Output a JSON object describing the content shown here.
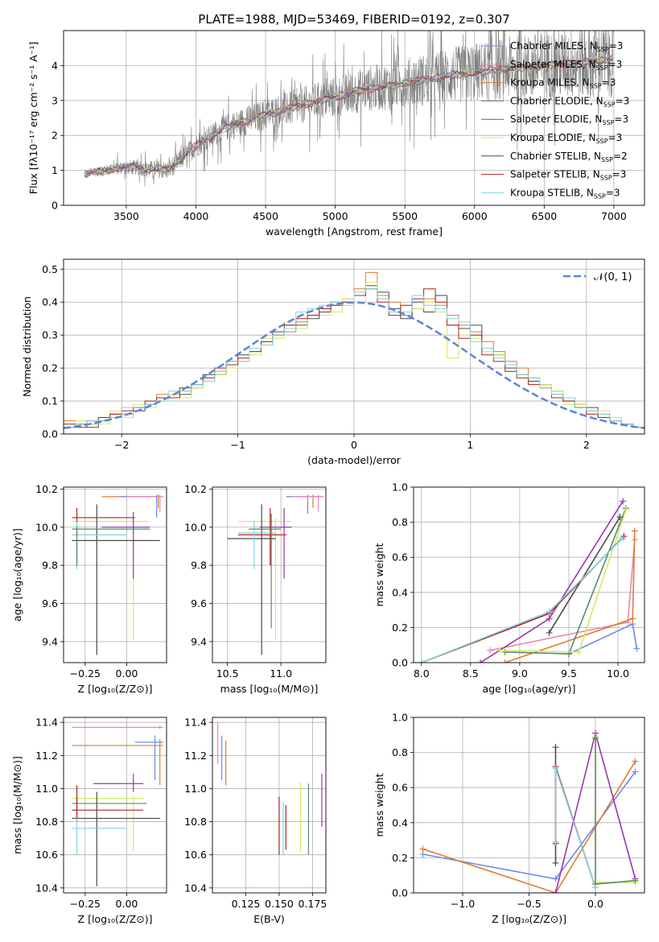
{
  "title": "PLATE=1988, MJD=53469, FIBERID=0192, z=0.307",
  "colors": {
    "Chabrier MILES": "#6a8ee0",
    "Salpeter MILES": "#e887b8",
    "Kroupa MILES": "#e07b30",
    "Chabrier ELODIE": "#5a8a6a",
    "Salpeter ELODIE": "#9a35b0",
    "Kroupa ELODIE": "#d4ea60",
    "Chabrier STELIB": "#4a4a4a",
    "Salpeter STELIB": "#b02020",
    "Kroupa STELIB": "#80d4e0",
    "data": "#808080"
  },
  "chart_data": [
    {
      "type": "line",
      "title": "PLATE=1988, MJD=53469, FIBERID=0192, z=0.307",
      "xlabel": "wavelength [Angstrom, rest frame]",
      "ylabel": "Flux [fλ10⁻¹⁷ erg cm⁻² s⁻¹ A⁻¹]",
      "xlim": [
        3050,
        7220
      ],
      "ylim": [
        0,
        5
      ],
      "xticks": [
        3500,
        4000,
        4500,
        5000,
        5500,
        6000,
        6500,
        7000
      ],
      "yticks": [
        0,
        1,
        2,
        3,
        4
      ],
      "legend": "top-right",
      "series": [
        {
          "name": "Chabrier MILES, N_SSP=3"
        },
        {
          "name": "Salpeter MILES, N_SSP=3"
        },
        {
          "name": "Kroupa MILES, N_SSP=3"
        },
        {
          "name": "Chabrier ELODIE, N_SSP=3"
        },
        {
          "name": "Salpeter ELODIE, N_SSP=3"
        },
        {
          "name": "Kroupa ELODIE, N_SSP=3"
        },
        {
          "name": "Chabrier STELIB, N_SSP=2"
        },
        {
          "name": "Salpeter STELIB, N_SSP=3"
        },
        {
          "name": "Kroupa STELIB, N_SSP=3"
        }
      ],
      "model_trend": {
        "x": [
          3200,
          3500,
          3800,
          4000,
          4200,
          4500,
          4800,
          5000,
          5200,
          5500,
          5800,
          6000,
          6200,
          6500,
          6800,
          7000
        ],
        "y": [
          0.9,
          1.1,
          1.0,
          1.7,
          2.2,
          2.6,
          2.9,
          3.1,
          3.3,
          3.5,
          3.7,
          3.8,
          3.9,
          4.0,
          4.1,
          4.2
        ]
      }
    },
    {
      "type": "bar",
      "xlabel": "(data-model)/error",
      "ylabel": "Normed distribution",
      "xlim": [
        -2.5,
        2.5
      ],
      "ylim": [
        0,
        0.53
      ],
      "xticks": [
        -2,
        -1,
        0,
        1,
        2
      ],
      "yticks": [
        0.0,
        0.1,
        0.2,
        0.3,
        0.4,
        0.5
      ],
      "legend": "top-right",
      "reference_curve": {
        "name": "𝒩(0, 1)",
        "mean": 0,
        "sigma": 1
      },
      "bin_width": 0.1,
      "x_start": -2.5,
      "histograms": {
        "Kroupa MILES": [
          0.04,
          0.03,
          0.03,
          0.04,
          0.05,
          0.06,
          0.08,
          0.1,
          0.12,
          0.11,
          0.13,
          0.14,
          0.16,
          0.19,
          0.21,
          0.22,
          0.25,
          0.28,
          0.3,
          0.31,
          0.34,
          0.36,
          0.38,
          0.39,
          0.41,
          0.44,
          0.49,
          0.42,
          0.4,
          0.36,
          0.38,
          0.41,
          0.39,
          0.36,
          0.33,
          0.31,
          0.28,
          0.25,
          0.22,
          0.2,
          0.17,
          0.15,
          0.13,
          0.11,
          0.09,
          0.07,
          0.06,
          0.04,
          0.03,
          0.02
        ],
        "Chabrier STELIB": [
          0.02,
          0.03,
          0.02,
          0.04,
          0.06,
          0.05,
          0.07,
          0.09,
          0.11,
          0.12,
          0.12,
          0.15,
          0.18,
          0.18,
          0.22,
          0.24,
          0.26,
          0.27,
          0.31,
          0.33,
          0.33,
          0.35,
          0.37,
          0.4,
          0.4,
          0.42,
          0.45,
          0.43,
          0.38,
          0.35,
          0.4,
          0.37,
          0.42,
          0.33,
          0.32,
          0.33,
          0.26,
          0.24,
          0.2,
          0.18,
          0.16,
          0.15,
          0.12,
          0.1,
          0.08,
          0.08,
          0.05,
          0.05,
          0.03,
          0.02
        ],
        "Kroupa ELODIE": [
          0.03,
          0.04,
          0.03,
          0.03,
          0.07,
          0.05,
          0.09,
          0.08,
          0.1,
          0.12,
          0.11,
          0.14,
          0.17,
          0.18,
          0.2,
          0.23,
          0.24,
          0.29,
          0.29,
          0.34,
          0.32,
          0.38,
          0.36,
          0.37,
          0.41,
          0.4,
          0.46,
          0.41,
          0.37,
          0.39,
          0.38,
          0.4,
          0.37,
          0.23,
          0.3,
          0.29,
          0.25,
          0.24,
          0.19,
          0.18,
          0.15,
          0.15,
          0.13,
          0.09,
          0.09,
          0.06,
          0.07,
          0.05,
          0.03,
          0.02
        ],
        "Salpeter STELIB": [
          0.03,
          0.02,
          0.04,
          0.05,
          0.06,
          0.07,
          0.08,
          0.1,
          0.11,
          0.11,
          0.14,
          0.15,
          0.17,
          0.2,
          0.21,
          0.23,
          0.25,
          0.28,
          0.3,
          0.33,
          0.35,
          0.36,
          0.38,
          0.39,
          0.4,
          0.42,
          0.44,
          0.4,
          0.36,
          0.39,
          0.41,
          0.44,
          0.4,
          0.33,
          0.29,
          0.3,
          0.24,
          0.22,
          0.19,
          0.17,
          0.15,
          0.14,
          0.11,
          0.1,
          0.08,
          0.06,
          0.05,
          0.04,
          0.03,
          0.02
        ],
        "Kroupa STELIB": [
          0.02,
          0.03,
          0.04,
          0.04,
          0.05,
          0.08,
          0.08,
          0.09,
          0.1,
          0.13,
          0.13,
          0.15,
          0.16,
          0.19,
          0.22,
          0.22,
          0.26,
          0.27,
          0.3,
          0.32,
          0.37,
          0.38,
          0.39,
          0.4,
          0.39,
          0.43,
          0.44,
          0.41,
          0.37,
          0.37,
          0.42,
          0.39,
          0.38,
          0.35,
          0.34,
          0.28,
          0.26,
          0.23,
          0.21,
          0.18,
          0.17,
          0.14,
          0.12,
          0.11,
          0.08,
          0.07,
          0.06,
          0.04,
          0.03,
          0.02
        ]
      }
    },
    {
      "type": "scatter",
      "xlabel": "Z [log₁₀(Z/Z⊙)]",
      "ylabel": "age  [log₁₀(age/yr)]",
      "xlim": [
        -0.38,
        0.24
      ],
      "ylim": [
        9.29,
        10.21
      ],
      "xticks": [
        -0.25,
        0.0
      ],
      "yticks": [
        9.4,
        9.6,
        9.8,
        10.0,
        10.2
      ]
    },
    {
      "type": "scatter",
      "xlabel": "mass [log₁₀(M/M⊙)]",
      "ylabel": "",
      "xlim": [
        10.36,
        11.42
      ],
      "ylim": [
        9.29,
        10.21
      ],
      "xticks": [
        10.5,
        11.0
      ],
      "yticks": [
        9.4,
        9.6,
        9.8,
        10.0,
        10.2
      ]
    },
    {
      "type": "line",
      "xlabel": "age  [log₁₀(age/yr)]",
      "ylabel": "mass weight",
      "xlim": [
        7.92,
        10.27
      ],
      "ylim": [
        0,
        1
      ],
      "xticks": [
        8.0,
        8.5,
        9.0,
        9.5,
        10.0
      ],
      "yticks": [
        0.0,
        0.2,
        0.4,
        0.6,
        0.8,
        1.0
      ],
      "series": [
        {
          "key": "Chabrier MILES",
          "x": [
            9.5,
            10.15,
            10.19
          ],
          "y": [
            0.05,
            0.22,
            0.08
          ]
        },
        {
          "key": "Salpeter MILES",
          "x": [
            8.7,
            10.1,
            10.17
          ],
          "y": [
            0.07,
            0.23,
            0.7
          ]
        },
        {
          "key": "Kroupa MILES",
          "x": [
            8.85,
            10.15,
            10.17
          ],
          "y": [
            0.0,
            0.25,
            0.75
          ]
        },
        {
          "key": "Chabrier ELODIE",
          "x": [
            8.85,
            9.5,
            10.08
          ],
          "y": [
            0.06,
            0.05,
            0.88
          ]
        },
        {
          "key": "Salpeter ELODIE",
          "x": [
            8.6,
            9.3,
            10.05
          ],
          "y": [
            0.0,
            0.25,
            0.92
          ]
        },
        {
          "key": "Kroupa ELODIE",
          "x": [
            8.8,
            9.6,
            10.08
          ],
          "y": [
            0.07,
            0.06,
            0.87
          ]
        },
        {
          "key": "Chabrier STELIB",
          "x": [
            9.3,
            10.02
          ],
          "y": [
            0.17,
            0.83
          ]
        },
        {
          "key": "Salpeter STELIB",
          "x": [
            8.0,
            9.3,
            10.06
          ],
          "y": [
            0.0,
            0.28,
            0.72
          ]
        },
        {
          "key": "Kroupa STELIB",
          "x": [
            8.0,
            9.3,
            10.05
          ],
          "y": [
            0.0,
            0.29,
            0.71
          ]
        }
      ]
    },
    {
      "type": "scatter",
      "xlabel": "Z [log₁₀(Z/Z⊙)]",
      "ylabel": "mass [log₁₀(M/M⊙)]",
      "xlim": [
        -0.38,
        0.24
      ],
      "ylim": [
        10.37,
        11.43
      ],
      "xticks": [
        -0.25,
        0.0
      ],
      "yticks": [
        10.4,
        10.6,
        10.8,
        11.0,
        11.2,
        11.4
      ]
    },
    {
      "type": "scatter",
      "xlabel": "E(B-V)",
      "ylabel": "",
      "xlim": [
        0.1,
        0.185
      ],
      "ylim": [
        10.37,
        11.43
      ],
      "xticks": [
        0.125,
        0.15,
        0.175
      ],
      "xticklabels": [
        "0.125",
        "0.150",
        "0.175"
      ],
      "yticks": [
        10.4,
        10.6,
        10.8,
        11.0,
        11.2,
        11.4
      ]
    },
    {
      "type": "line",
      "xlabel": "Z [log₁₀(Z/Z⊙)]",
      "ylabel": "mass weight",
      "xlim": [
        -1.37,
        0.37
      ],
      "ylim": [
        0,
        1
      ],
      "xticks": [
        -1.0,
        -0.5,
        0.0
      ],
      "yticks": [
        0.0,
        0.2,
        0.4,
        0.6,
        0.8,
        1.0
      ],
      "series": [
        {
          "key": "Chabrier MILES",
          "x": [
            -1.3,
            -0.3,
            0.3
          ],
          "y": [
            0.22,
            0.08,
            0.69
          ]
        },
        {
          "key": "Kroupa MILES",
          "x": [
            -1.3,
            -0.3,
            0.3
          ],
          "y": [
            0.25,
            0.0,
            0.75
          ]
        },
        {
          "key": "Salpeter ELODIE",
          "x": [
            -0.3,
            0.0,
            0.3
          ],
          "y": [
            0.0,
            0.91,
            0.08
          ]
        },
        {
          "key": "Kroupa ELODIE",
          "x": [
            0.0,
            0.0,
            0.3
          ],
          "y": [
            0.89,
            0.06,
            0.06
          ]
        },
        {
          "key": "Chabrier ELODIE",
          "x": [
            0.0,
            0.0,
            0.3
          ],
          "y": [
            0.88,
            0.05,
            0.07
          ]
        },
        {
          "key": "Chabrier STELIB",
          "x": [
            -0.3,
            -0.3
          ],
          "y": [
            0.17,
            0.83
          ]
        },
        {
          "key": "Salpeter STELIB",
          "x": [
            -0.3,
            -0.3,
            0.0
          ],
          "y": [
            0.28,
            0.72,
            0.03
          ]
        },
        {
          "key": "Kroupa STELIB",
          "x": [
            -0.3,
            -0.3,
            0.0
          ],
          "y": [
            0.29,
            0.71,
            0.03
          ]
        }
      ]
    }
  ]
}
